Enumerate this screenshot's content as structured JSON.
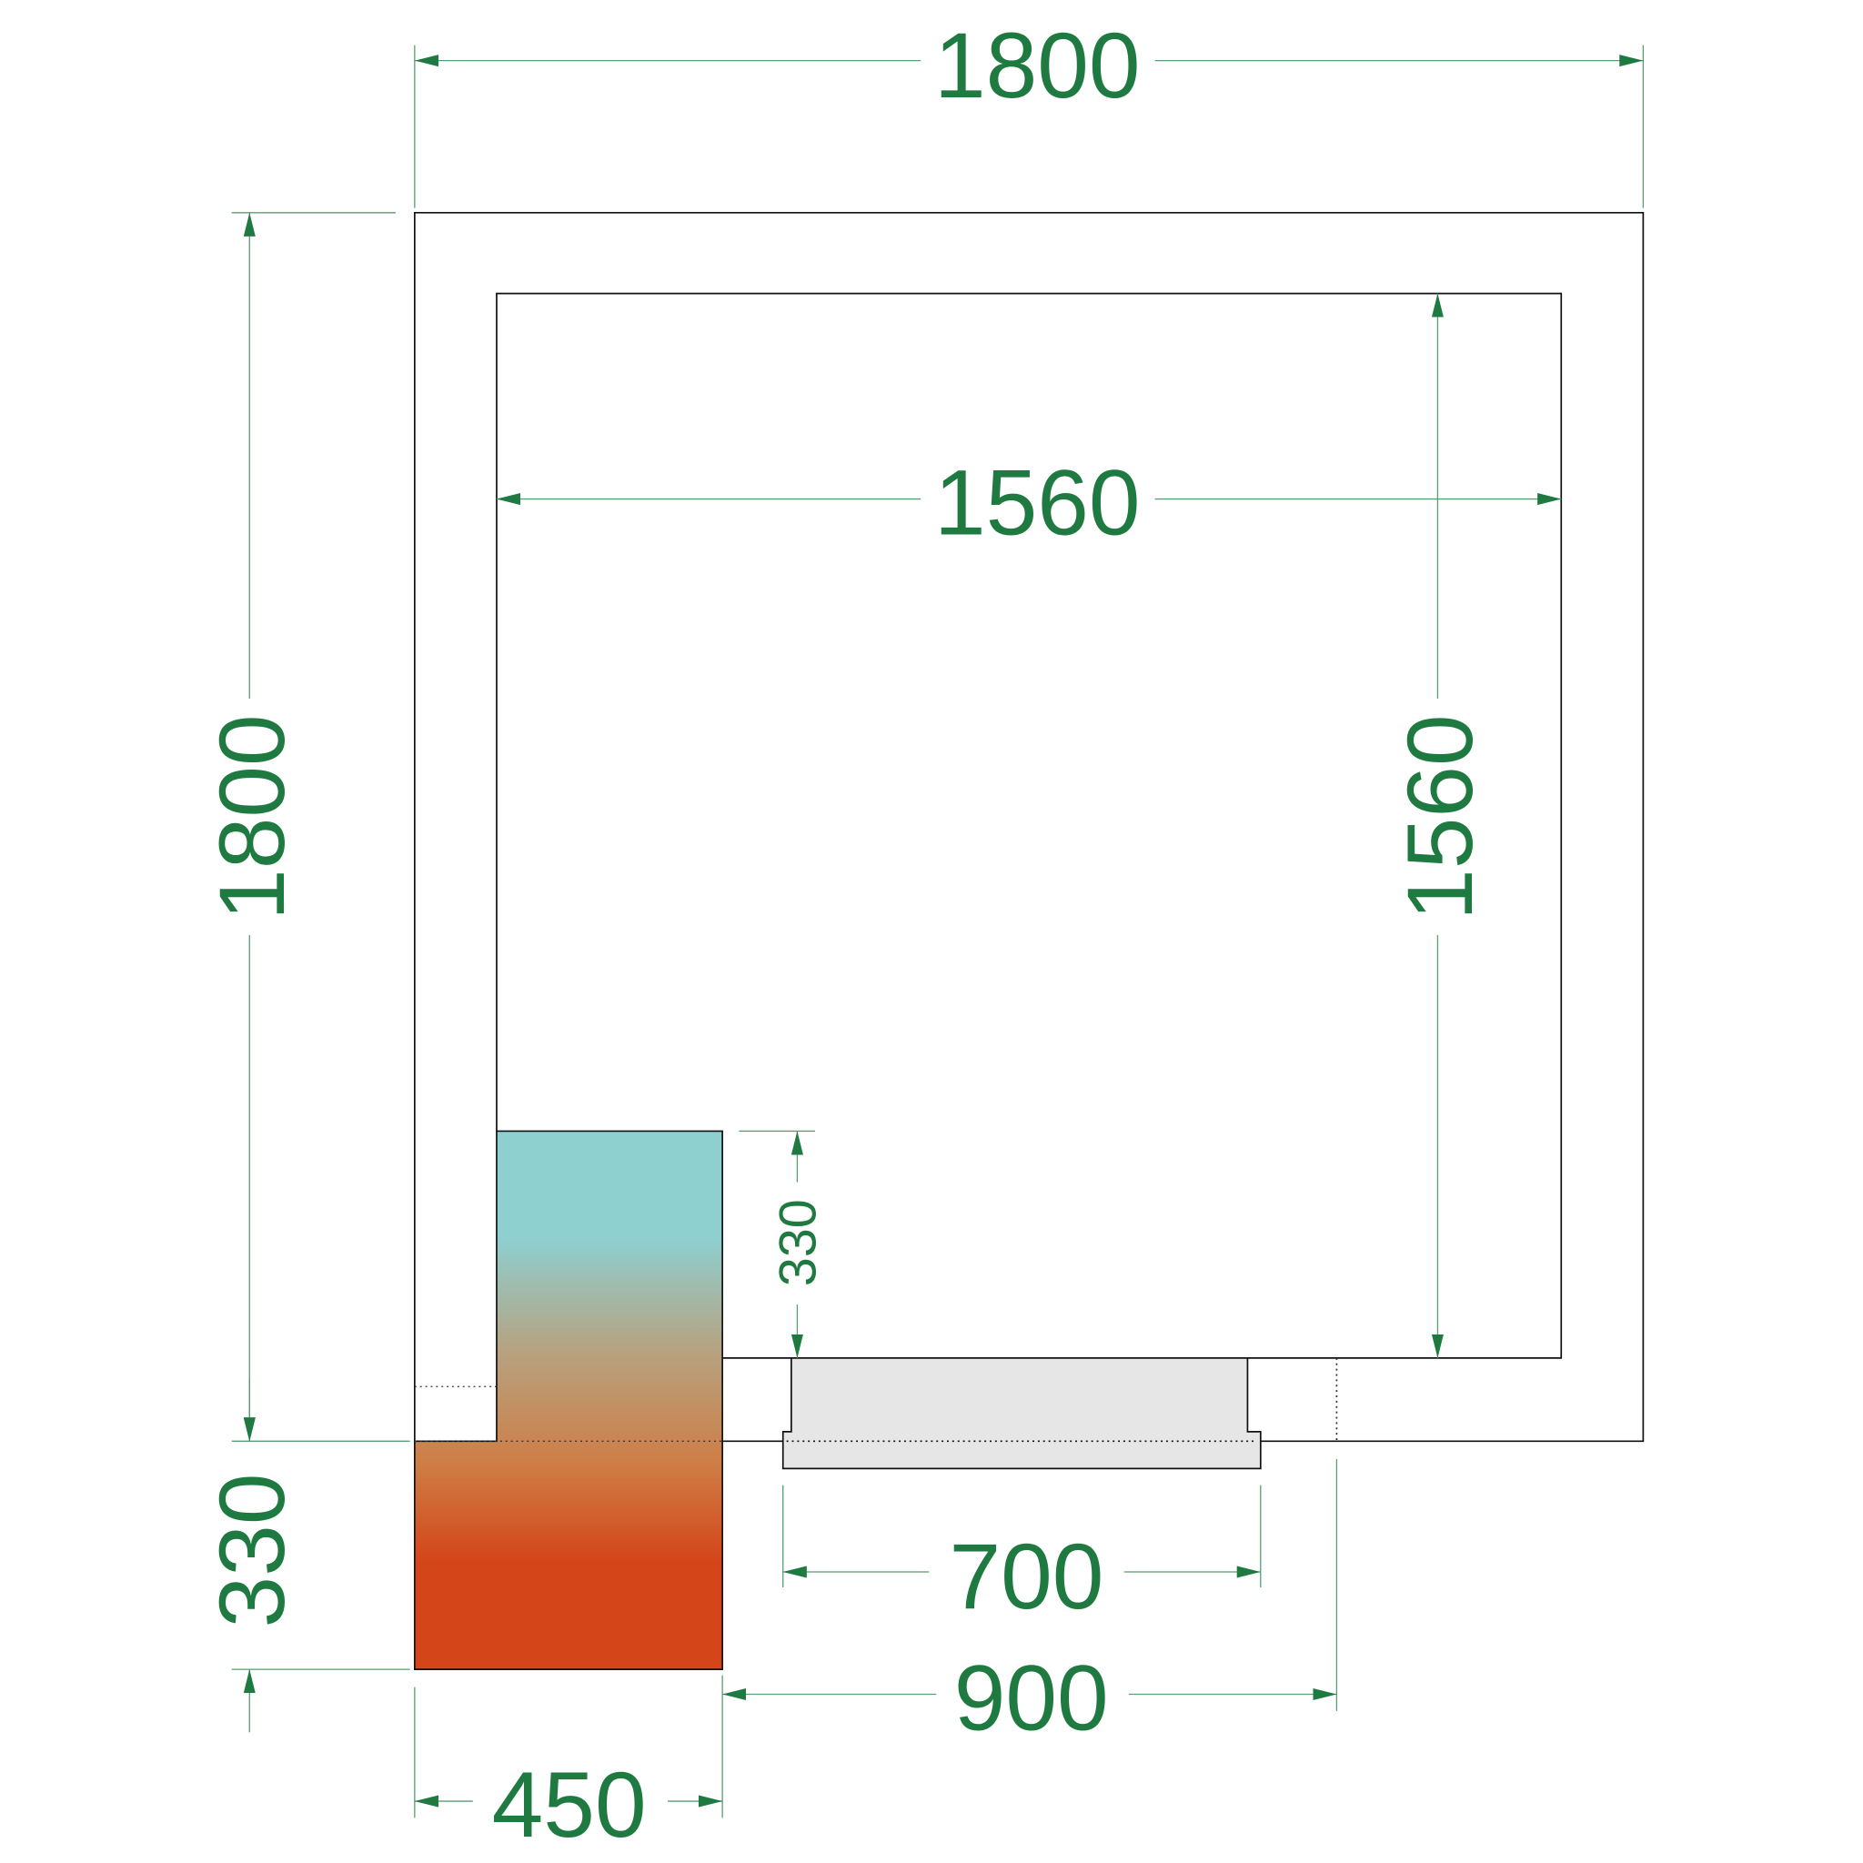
{
  "dimensions": {
    "outer_width": "1800",
    "outer_depth": "1800",
    "inner_width": "1560",
    "inner_depth": "1560",
    "unit_depth_inside": "330",
    "unit_depth_outside": "330",
    "unit_width": "450",
    "door_clear_width": "700",
    "door_frame_width": "900"
  },
  "colors": {
    "dimension_text": "#1f7a41",
    "dimension_line": "#5a9e74",
    "door_fill": "#e6e6e6",
    "unit_gradient": [
      "#8ecfd0",
      "#b5a483",
      "#cf7d45",
      "#d4451a"
    ]
  }
}
